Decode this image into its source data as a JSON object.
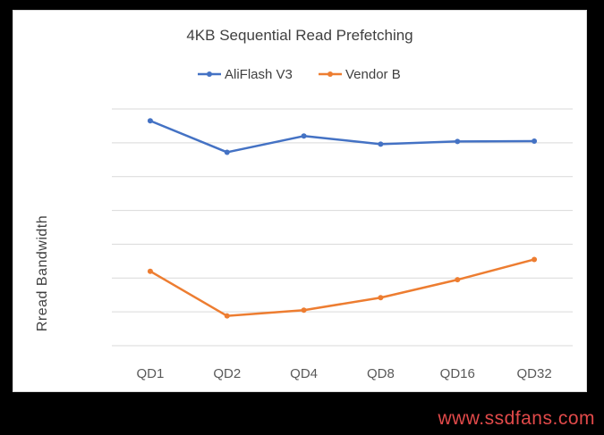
{
  "chart_data": {
    "type": "line",
    "title": "4KB Sequential Read Prefetching",
    "xlabel": "",
    "ylabel": "Rread Bandwidth",
    "categories": [
      "QD1",
      "QD2",
      "QD4",
      "QD8",
      "QD16",
      "QD32"
    ],
    "ylim": [
      0,
      7
    ],
    "gridlines": 7,
    "grid": true,
    "y_tick_labels_shown": false,
    "legend_position": "top",
    "series": [
      {
        "name": "AliFlash V3",
        "color": "#4472c4",
        "values": [
          6.65,
          5.72,
          6.2,
          5.96,
          6.04,
          6.05
        ]
      },
      {
        "name": "Vendor B",
        "color": "#ed7d31",
        "values": [
          2.2,
          0.88,
          1.05,
          1.42,
          1.95,
          2.55
        ]
      }
    ]
  },
  "watermark": "www.ssdfans.com"
}
